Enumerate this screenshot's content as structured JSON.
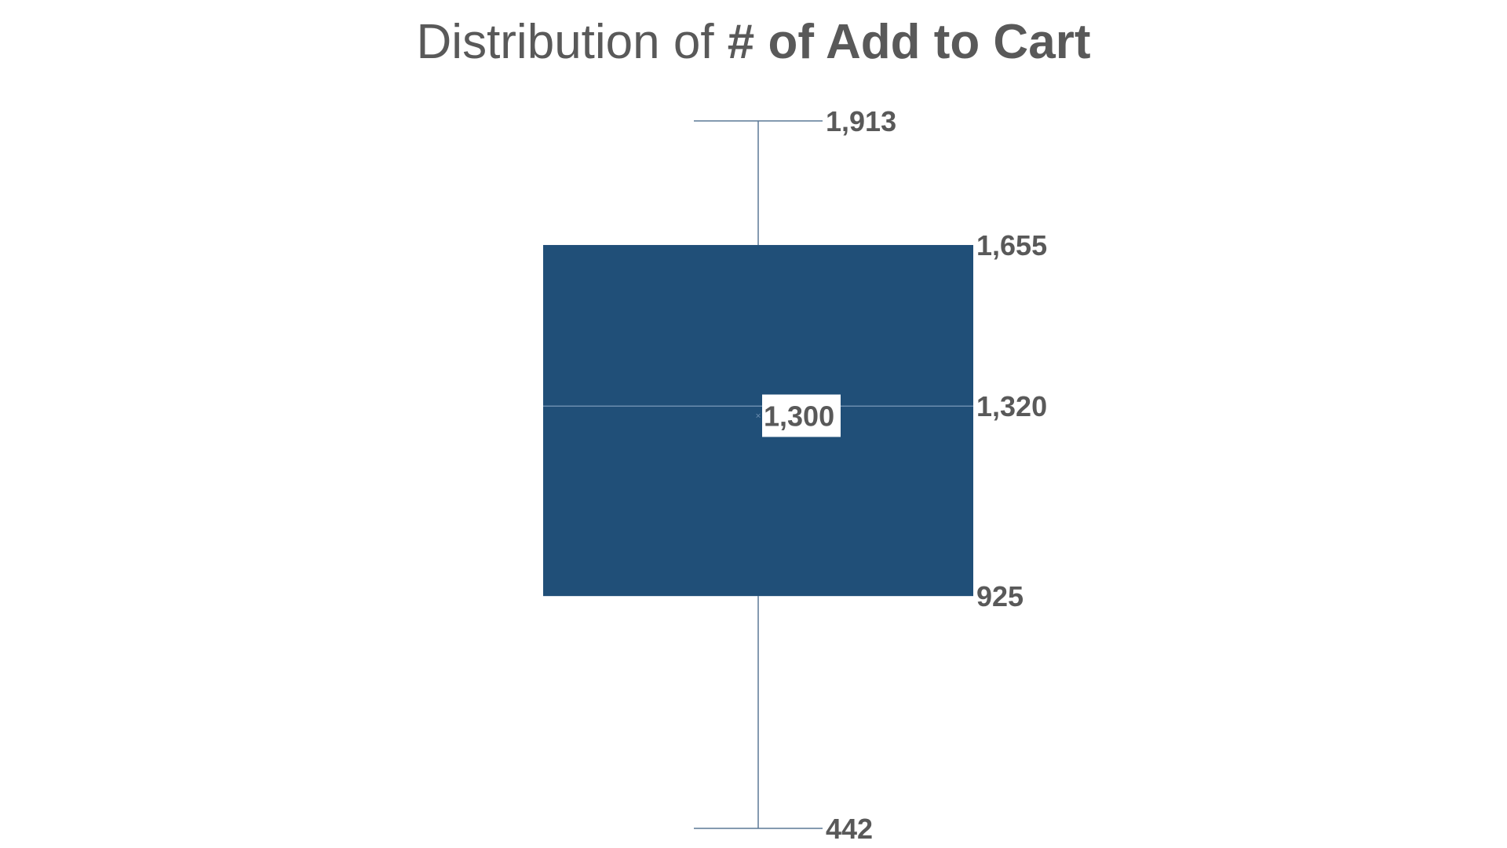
{
  "chart_data": {
    "type": "box",
    "title_prefix": "Distribution of ",
    "title_field": "# of Add to Cart",
    "xlabel": "",
    "ylabel": "",
    "min": 442,
    "q1": 925,
    "median": 1320,
    "mean": 1300,
    "q3": 1655,
    "max": 1913,
    "labels": {
      "min": "442",
      "q1": "925",
      "median": "1,320",
      "mean": "1,300",
      "q3": "1,655",
      "max": "1,913"
    },
    "grid": false,
    "legend": "none"
  },
  "colors": {
    "box_fill": "#204F78",
    "whisker": "#5B7896",
    "median_line": "#6A8CAE",
    "label_text": "#595959",
    "title_text": "#595959",
    "mean_label_bg": "#FFFFFF"
  }
}
